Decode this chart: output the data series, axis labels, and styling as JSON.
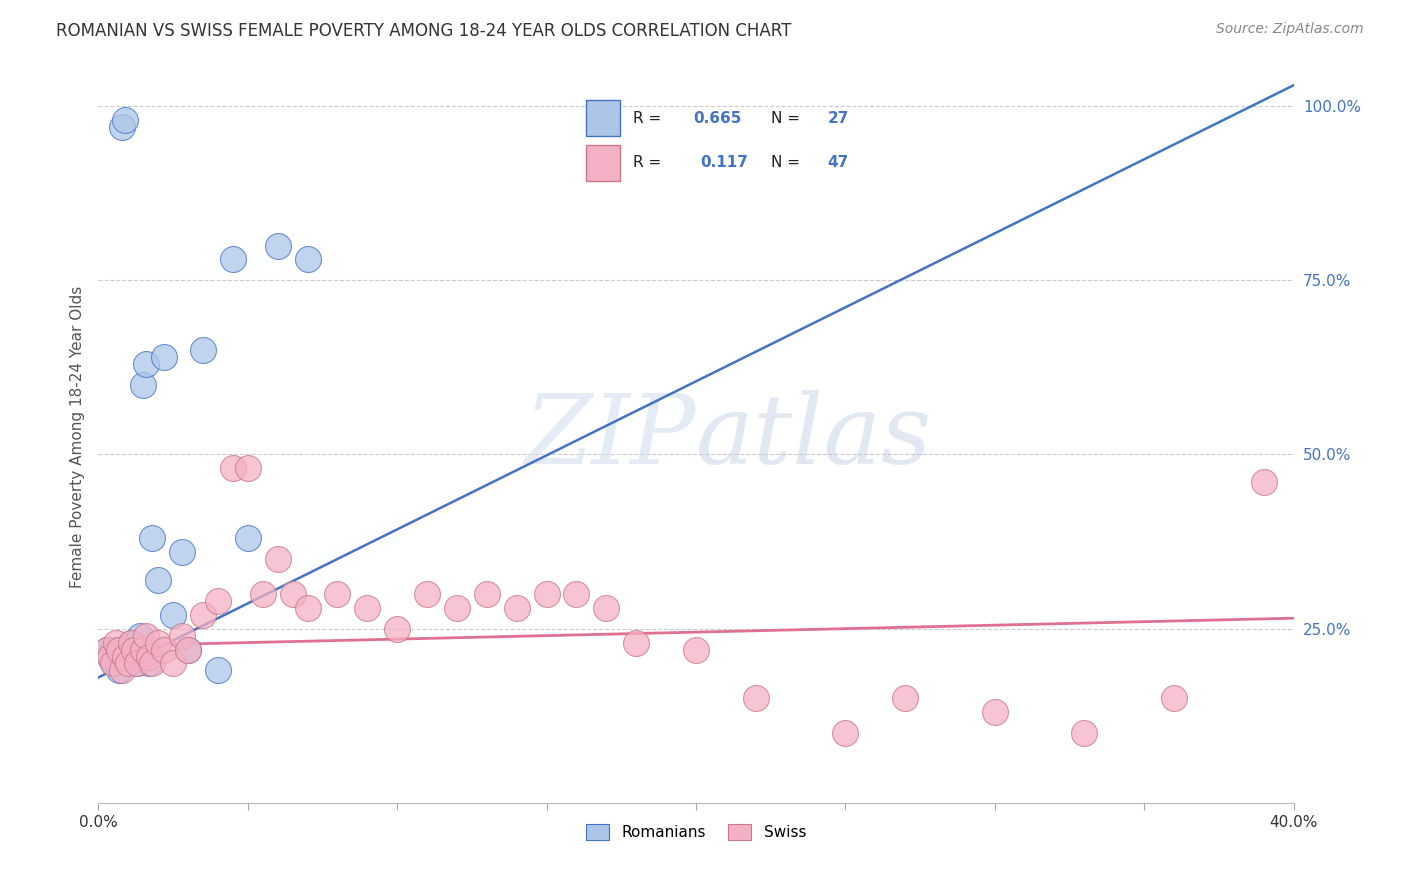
{
  "title": "ROMANIAN VS SWISS FEMALE POVERTY AMONG 18-24 YEAR OLDS CORRELATION CHART",
  "source": "Source: ZipAtlas.com",
  "ylabel": "Female Poverty Among 18-24 Year Olds",
  "xlim": [
    0.0,
    0.4
  ],
  "ylim": [
    0.0,
    1.05
  ],
  "watermark_zip": "ZIP",
  "watermark_atlas": "atlas",
  "legend_r1_label": "R = ",
  "legend_r1_val": "0.665",
  "legend_n1_label": "N = ",
  "legend_n1_val": "27",
  "legend_r2_label": "R =  ",
  "legend_r2_val": "0.117",
  "legend_n2_label": "N = ",
  "legend_n2_val": "47",
  "romanian_color": "#adc6e8",
  "swiss_color": "#f4b0c4",
  "blue_line_color": "#4472c4",
  "pink_line_color": "#e07090",
  "label_color": "#4472c4",
  "romanian_x": [
    0.003,
    0.004,
    0.005,
    0.006,
    0.007,
    0.008,
    0.009,
    0.01,
    0.011,
    0.012,
    0.013,
    0.014,
    0.015,
    0.016,
    0.017,
    0.018,
    0.02,
    0.022,
    0.025,
    0.028,
    0.03,
    0.035,
    0.04,
    0.045,
    0.05,
    0.06,
    0.07
  ],
  "romanian_y": [
    0.22,
    0.21,
    0.2,
    0.22,
    0.19,
    0.97,
    0.98,
    0.21,
    0.23,
    0.22,
    0.2,
    0.24,
    0.6,
    0.63,
    0.2,
    0.38,
    0.32,
    0.64,
    0.27,
    0.36,
    0.22,
    0.65,
    0.19,
    0.78,
    0.38,
    0.8,
    0.78
  ],
  "swiss_x": [
    0.003,
    0.004,
    0.005,
    0.006,
    0.007,
    0.008,
    0.009,
    0.01,
    0.011,
    0.012,
    0.013,
    0.015,
    0.016,
    0.017,
    0.018,
    0.02,
    0.022,
    0.025,
    0.028,
    0.03,
    0.035,
    0.04,
    0.045,
    0.05,
    0.055,
    0.06,
    0.065,
    0.07,
    0.08,
    0.09,
    0.1,
    0.11,
    0.12,
    0.13,
    0.14,
    0.15,
    0.16,
    0.17,
    0.18,
    0.2,
    0.22,
    0.25,
    0.27,
    0.3,
    0.33,
    0.36,
    0.39
  ],
  "swiss_y": [
    0.22,
    0.21,
    0.2,
    0.23,
    0.22,
    0.19,
    0.21,
    0.2,
    0.23,
    0.22,
    0.2,
    0.22,
    0.24,
    0.21,
    0.2,
    0.23,
    0.22,
    0.2,
    0.24,
    0.22,
    0.27,
    0.29,
    0.48,
    0.48,
    0.3,
    0.35,
    0.3,
    0.28,
    0.3,
    0.28,
    0.25,
    0.3,
    0.28,
    0.3,
    0.28,
    0.3,
    0.3,
    0.28,
    0.23,
    0.22,
    0.15,
    0.1,
    0.15,
    0.13,
    0.1,
    0.15,
    0.46
  ],
  "blue_line_x0": 0.0,
  "blue_line_y0": 0.18,
  "blue_line_x1": 0.4,
  "blue_line_y1": 1.03,
  "pink_line_x0": 0.0,
  "pink_line_y0": 0.225,
  "pink_line_x1": 0.4,
  "pink_line_y1": 0.265
}
